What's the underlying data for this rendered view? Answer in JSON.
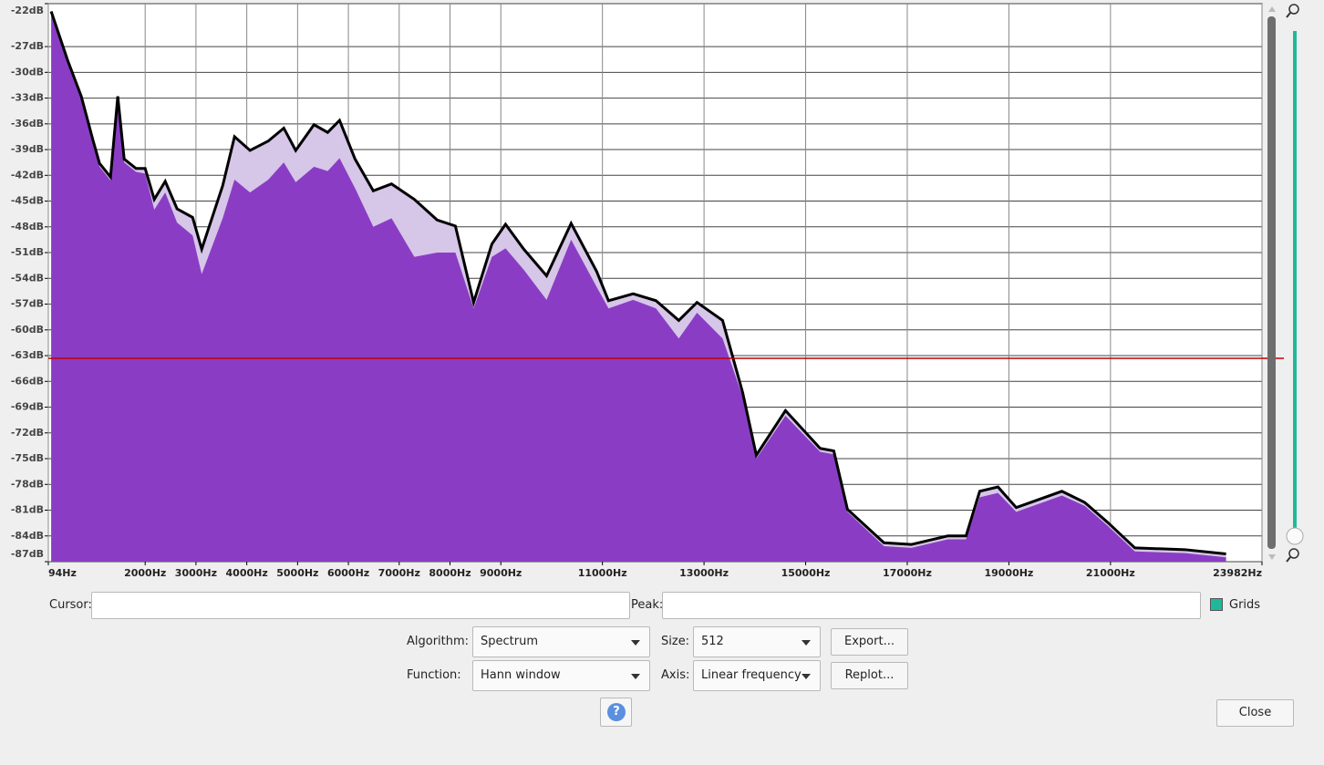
{
  "chart_data": {
    "type": "area",
    "x": [
      150,
      474,
      743,
      977,
      1102,
      1318,
      1461,
      1587,
      1820,
      2000,
      2179,
      2395,
      2628,
      2934,
      3113,
      3526,
      3759,
      4064,
      4424,
      4729,
      4963,
      5323,
      5592,
      5826,
      6131,
      6490,
      6849,
      7298,
      7747,
      8106,
      8465,
      8824,
      9093,
      9452,
      9901,
      10384,
      10887,
      11120,
      11605,
      12054,
      12503,
      12862,
      13365,
      13760,
      14029,
      14603,
      15285,
      15554,
      15823,
      16541,
      17080,
      17798,
      18157,
      18426,
      18786,
      19145,
      20043,
      20492,
      20941,
      21480,
      22467,
      23275
    ],
    "series": [
      {
        "color": "#d6c6e8",
        "values": [
          -22.9,
          -28.6,
          -32.8,
          -38.0,
          -40.6,
          -42.2,
          -32.8,
          -40.1,
          -41.2,
          -41.2,
          -44.8,
          -42.7,
          -45.9,
          -46.9,
          -50.6,
          -43.2,
          -37.5,
          -39.1,
          -38.0,
          -36.5,
          -39.1,
          -36.1,
          -37.0,
          -35.6,
          -40.1,
          -43.8,
          -43.0,
          -44.8,
          -47.2,
          -47.9,
          -56.8,
          -50.0,
          -47.7,
          -50.6,
          -53.7,
          -47.6,
          -53.2,
          -56.6,
          -55.8,
          -56.6,
          -58.9,
          -56.8,
          -58.9,
          -67.3,
          -74.6,
          -69.4,
          -73.8,
          -74.1,
          -80.9,
          -84.8,
          -85.0,
          -84.0,
          -84.0,
          -78.8,
          -78.3,
          -80.7,
          -78.8,
          -80.1,
          -82.4,
          -85.4,
          -85.6,
          -86.1
        ]
      },
      {
        "color": "#8a3dc4",
        "values": [
          -23.2,
          -29,
          -33.2,
          -38.5,
          -41,
          -42.6,
          -34,
          -40.5,
          -41.6,
          -41.8,
          -46,
          -44,
          -47.5,
          -49,
          -53.5,
          -47,
          -42.5,
          -44,
          -42.5,
          -40.5,
          -42.8,
          -41,
          -41.5,
          -40,
          -43.5,
          -48,
          -47,
          -51.5,
          -51,
          -51,
          -57.5,
          -51.5,
          -50.5,
          -53,
          -56.5,
          -49.5,
          -55,
          -57.5,
          -56.5,
          -57.5,
          -61,
          -58,
          -61,
          -67.8,
          -75,
          -70,
          -74.2,
          -74.5,
          -81.2,
          -85.2,
          -85.4,
          -84.4,
          -84.4,
          -79.5,
          -79,
          -81.2,
          -79.3,
          -80.5,
          -82.8,
          -85.8,
          -86,
          -86.5
        ]
      }
    ],
    "xlim": [
      94,
      23982
    ],
    "xticks": [
      {
        "value": 94,
        "label": "94Hz"
      },
      {
        "value": 2000,
        "label": "2000Hz"
      },
      {
        "value": 3000,
        "label": "3000Hz"
      },
      {
        "value": 4000,
        "label": "4000Hz"
      },
      {
        "value": 5000,
        "label": "5000Hz"
      },
      {
        "value": 6000,
        "label": "6000Hz"
      },
      {
        "value": 7000,
        "label": "7000Hz"
      },
      {
        "value": 8000,
        "label": "8000Hz"
      },
      {
        "value": 9000,
        "label": "9000Hz"
      },
      {
        "value": 11000,
        "label": "11000Hz"
      },
      {
        "value": 13000,
        "label": "13000Hz"
      },
      {
        "value": 15000,
        "label": "15000Hz"
      },
      {
        "value": 17000,
        "label": "17000Hz"
      },
      {
        "value": 19000,
        "label": "19000Hz"
      },
      {
        "value": 21000,
        "label": "21000Hz"
      },
      {
        "value": 23982,
        "label": "23982Hz"
      }
    ],
    "ylim": [
      -87,
      -22
    ],
    "yticks": [
      {
        "value": -22,
        "label": "-22dB"
      },
      {
        "value": -27,
        "label": "-27dB"
      },
      {
        "value": -30,
        "label": "-30dB"
      },
      {
        "value": -33,
        "label": "-33dB"
      },
      {
        "value": -36,
        "label": "-36dB"
      },
      {
        "value": -39,
        "label": "-39dB"
      },
      {
        "value": -42,
        "label": "-42dB"
      },
      {
        "value": -45,
        "label": "-45dB"
      },
      {
        "value": -48,
        "label": "-48dB"
      },
      {
        "value": -51,
        "label": "-51dB"
      },
      {
        "value": -54,
        "label": "-54dB"
      },
      {
        "value": -57,
        "label": "-57dB"
      },
      {
        "value": -60,
        "label": "-60dB"
      },
      {
        "value": -63,
        "label": "-63dB"
      },
      {
        "value": -66,
        "label": "-66dB"
      },
      {
        "value": -69,
        "label": "-69dB"
      },
      {
        "value": -72,
        "label": "-72dB"
      },
      {
        "value": -75,
        "label": "-75dB"
      },
      {
        "value": -78,
        "label": "-78dB"
      },
      {
        "value": -81,
        "label": "-81dB"
      },
      {
        "value": -84,
        "label": "-84dB"
      },
      {
        "value": -87,
        "label": "-87dB"
      }
    ],
    "grid": true
  },
  "controls": {
    "cursor_label": "Cursor:",
    "peak_label": "Peak:",
    "grids_label": "Grids",
    "algorithm_label": "Algorithm:",
    "algorithm_value": "Spectrum",
    "size_label": "Size:",
    "size_value": "512",
    "export_button": "Export...",
    "function_label": "Function:",
    "function_value": "Hann window",
    "axis_label": "Axis:",
    "axis_value": "Linear frequency",
    "replot_button": "Replot...",
    "help_button": "?",
    "close_button": "Close"
  }
}
